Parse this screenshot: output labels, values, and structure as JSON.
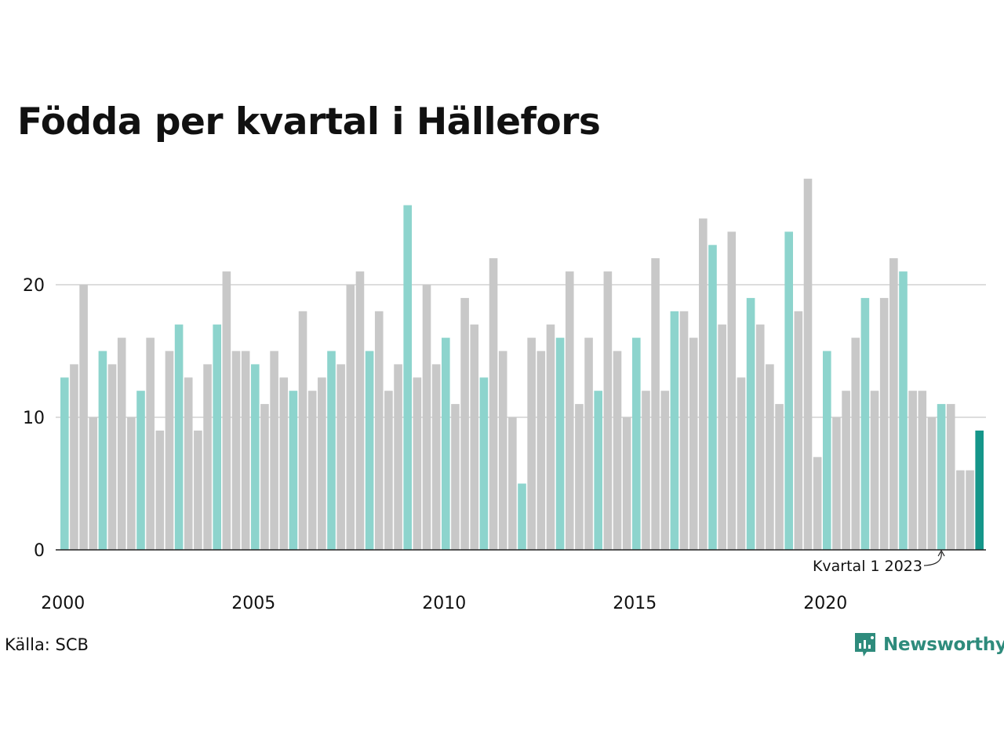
{
  "chart_data": {
    "type": "bar",
    "title": "Födda per kvartal i Hällefors",
    "xlabel": "",
    "ylabel": "",
    "ylim": [
      0,
      28
    ],
    "yticks": [
      0,
      10,
      20
    ],
    "xtick_labels": [
      "2000",
      "2005",
      "2010",
      "2015",
      "2020"
    ],
    "grid": true,
    "highlight": "first quarter of each year",
    "colors": {
      "bar": "#c8c8c8",
      "highlight": "#8dd4cd",
      "latest": "#15968a",
      "grid": "#dddddd",
      "axis": "#222222"
    },
    "categories": [
      "2000 Q1",
      "2000 Q2",
      "2000 Q3",
      "2000 Q4",
      "2001 Q1",
      "2001 Q2",
      "2001 Q3",
      "2001 Q4",
      "2002 Q1",
      "2002 Q2",
      "2002 Q3",
      "2002 Q4",
      "2003 Q1",
      "2003 Q2",
      "2003 Q3",
      "2003 Q4",
      "2004 Q1",
      "2004 Q2",
      "2004 Q3",
      "2004 Q4",
      "2005 Q1",
      "2005 Q2",
      "2005 Q3",
      "2005 Q4",
      "2006 Q1",
      "2006 Q2",
      "2006 Q3",
      "2006 Q4",
      "2007 Q1",
      "2007 Q2",
      "2007 Q3",
      "2007 Q4",
      "2008 Q1",
      "2008 Q2",
      "2008 Q3",
      "2008 Q4",
      "2009 Q1",
      "2009 Q2",
      "2009 Q3",
      "2009 Q4",
      "2010 Q1",
      "2010 Q2",
      "2010 Q3",
      "2010 Q4",
      "2011 Q1",
      "2011 Q2",
      "2011 Q3",
      "2011 Q4",
      "2012 Q1",
      "2012 Q2",
      "2012 Q3",
      "2012 Q4",
      "2013 Q1",
      "2013 Q2",
      "2013 Q3",
      "2013 Q4",
      "2014 Q1",
      "2014 Q2",
      "2014 Q3",
      "2014 Q4",
      "2015 Q1",
      "2015 Q2",
      "2015 Q3",
      "2015 Q4",
      "2016 Q1",
      "2016 Q2",
      "2016 Q3",
      "2016 Q4",
      "2017 Q1",
      "2017 Q2",
      "2017 Q3",
      "2017 Q4",
      "2018 Q1",
      "2018 Q2",
      "2018 Q3",
      "2018 Q4",
      "2019 Q1",
      "2019 Q2",
      "2019 Q3",
      "2019 Q4",
      "2020 Q1",
      "2020 Q2",
      "2020 Q3",
      "2020 Q4",
      "2021 Q1",
      "2021 Q2",
      "2021 Q3",
      "2021 Q4",
      "2022 Q1",
      "2022 Q2",
      "2022 Q3",
      "2022 Q4",
      "2023 Q1",
      "2023 Q2",
      "2023 Q3",
      "2023 Q4",
      "2024 Q1"
    ],
    "values": [
      13,
      14,
      20,
      10,
      15,
      14,
      16,
      10,
      12,
      16,
      9,
      15,
      17,
      13,
      9,
      14,
      17,
      21,
      15,
      15,
      14,
      11,
      15,
      13,
      12,
      18,
      12,
      13,
      15,
      14,
      20,
      21,
      15,
      18,
      12,
      14,
      26,
      13,
      20,
      14,
      16,
      11,
      19,
      17,
      13,
      22,
      15,
      10,
      5,
      16,
      15,
      17,
      16,
      21,
      11,
      16,
      12,
      21,
      15,
      10,
      16,
      12,
      22,
      12,
      18,
      18,
      16,
      25,
      23,
      17,
      24,
      13,
      19,
      17,
      14,
      11,
      24,
      18,
      28,
      7,
      15,
      10,
      12,
      16,
      19,
      12,
      19,
      22,
      21,
      12,
      12,
      10,
      11,
      11,
      6,
      6,
      9
    ],
    "annotation": {
      "label": "Kvartal 1 2023",
      "category": "2023 Q1"
    }
  },
  "footer": {
    "source": "Källa: SCB",
    "logo_text": "Newsworthy",
    "logo_icon": "newsworthy-chart-bubble-icon"
  }
}
